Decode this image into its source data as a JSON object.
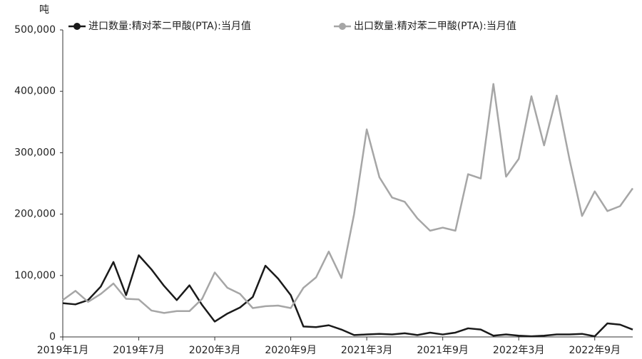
{
  "chart_data": {
    "type": "line",
    "y_unit": "吨",
    "categories": [
      "2019年1月",
      null,
      null,
      null,
      null,
      null,
      "2019年7月",
      null,
      null,
      null,
      null,
      null,
      "2020年3月",
      null,
      null,
      null,
      null,
      null,
      "2020年9月",
      null,
      null,
      null,
      null,
      null,
      "2021年3月",
      null,
      null,
      null,
      null,
      null,
      "2021年9月",
      null,
      null,
      null,
      null,
      null,
      "2022年3月",
      null,
      null,
      null,
      null,
      null,
      "2022年9月",
      null,
      null,
      null
    ],
    "series": [
      {
        "name": "进口数量:精对苯二甲酸(PTA):当月值",
        "color": "#1a1a1a",
        "values": [
          55000,
          53000,
          60000,
          82000,
          122000,
          68000,
          133000,
          110000,
          83000,
          60000,
          84000,
          52000,
          25000,
          38000,
          48000,
          65000,
          116000,
          95000,
          68000,
          17000,
          16000,
          19000,
          12000,
          3000,
          4000,
          5000,
          4000,
          6000,
          3000,
          7000,
          4000,
          7000,
          14000,
          12000,
          2000,
          4000,
          2000,
          1000,
          2000,
          4000,
          4000,
          5000,
          1000,
          22000,
          20000,
          12000
        ]
      },
      {
        "name": "出口数量:精对苯二甲酸(PTA):当月值",
        "color": "#a6a6a6",
        "values": [
          60000,
          75000,
          57000,
          70000,
          87000,
          62000,
          61000,
          43000,
          39000,
          42000,
          42000,
          62000,
          105000,
          80000,
          70000,
          47000,
          50000,
          51000,
          47000,
          80000,
          97000,
          139000,
          96000,
          200000,
          338000,
          260000,
          227000,
          220000,
          193000,
          173000,
          178000,
          173000,
          265000,
          258000,
          412000,
          261000,
          290000,
          392000,
          312000,
          393000,
          290000,
          197000,
          237000,
          205000,
          213000,
          242000
        ]
      }
    ],
    "ylim": [
      0,
      500000
    ],
    "yticks": [
      0,
      {
        "value": 100000,
        "label": "100,000"
      },
      {
        "value": 200000,
        "label": "200,000"
      },
      {
        "value": 300000,
        "label": "300,000"
      },
      {
        "value": 400000,
        "label": "400,000"
      },
      {
        "value": 500000,
        "label": "500,000"
      }
    ],
    "grid": false
  }
}
